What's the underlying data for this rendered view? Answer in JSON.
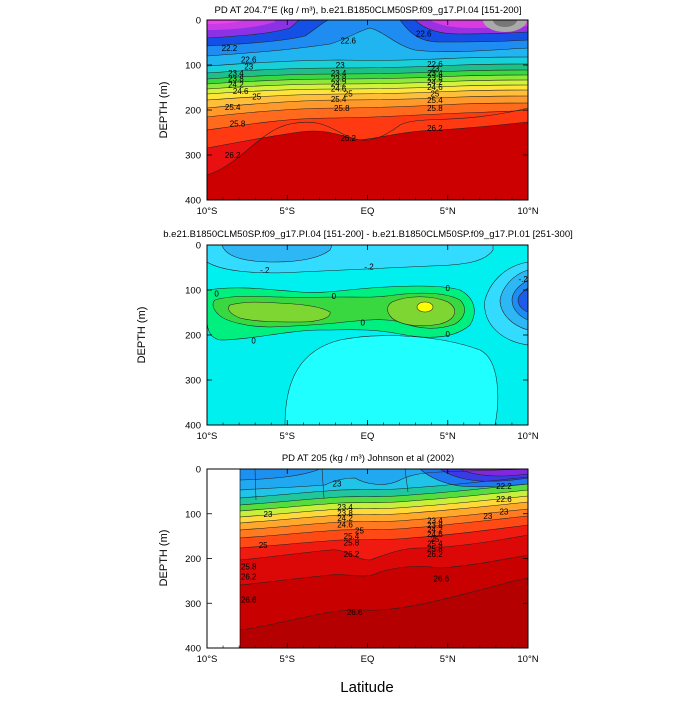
{
  "figure": {
    "xlabel": "Latitude"
  },
  "chart_data": [
    {
      "type": "heatmap",
      "title": "PD AT 204.7°E (kg / m³), b.e21.B1850CLM50SP.f09_g17.PI.04 [151-200]",
      "ylabel": "DEPTH (m)",
      "xlim": [
        -10,
        10
      ],
      "ylim": [
        400,
        0
      ],
      "x_ticks": [
        "10°S",
        "5°S",
        "EQ",
        "5°N",
        "10°N"
      ],
      "y_ticks": [
        0,
        100,
        200,
        300,
        400
      ],
      "contour_labels": [
        {
          "lat": -8.6,
          "depth": 62,
          "text": "22.2"
        },
        {
          "lat": -7.4,
          "depth": 88,
          "text": "22.6"
        },
        {
          "lat": -7.4,
          "depth": 103,
          "text": "23"
        },
        {
          "lat": -8.2,
          "depth": 118,
          "text": "23.4"
        },
        {
          "lat": -8.2,
          "depth": 130,
          "text": "23.8"
        },
        {
          "lat": -8.2,
          "depth": 143,
          "text": "24.2"
        },
        {
          "lat": -7.9,
          "depth": 158,
          "text": "24.6"
        },
        {
          "lat": -6.9,
          "depth": 170,
          "text": "25"
        },
        {
          "lat": -8.4,
          "depth": 193,
          "text": "25.4"
        },
        {
          "lat": -8.1,
          "depth": 230,
          "text": "25.8"
        },
        {
          "lat": -8.4,
          "depth": 300,
          "text": "26.2"
        },
        {
          "lat": -1.2,
          "depth": 45,
          "text": "22.6"
        },
        {
          "lat": -1.7,
          "depth": 100,
          "text": "23"
        },
        {
          "lat": -1.8,
          "depth": 118,
          "text": "23.4"
        },
        {
          "lat": -1.8,
          "depth": 130,
          "text": "23.8"
        },
        {
          "lat": -1.8,
          "depth": 141,
          "text": "24.2"
        },
        {
          "lat": -1.8,
          "depth": 152,
          "text": "24.6"
        },
        {
          "lat": -1.2,
          "depth": 163,
          "text": "25"
        },
        {
          "lat": -1.8,
          "depth": 176,
          "text": "25.4"
        },
        {
          "lat": -1.6,
          "depth": 196,
          "text": "25.8"
        },
        {
          "lat": -1.2,
          "depth": 262,
          "text": "26.2"
        },
        {
          "lat": 3.5,
          "depth": 30,
          "text": "22.6"
        },
        {
          "lat": 4.2,
          "depth": 98,
          "text": "22.6"
        },
        {
          "lat": 4.2,
          "depth": 108,
          "text": "23"
        },
        {
          "lat": 4.2,
          "depth": 118,
          "text": "23.4"
        },
        {
          "lat": 4.2,
          "depth": 128,
          "text": "23.8"
        },
        {
          "lat": 4.2,
          "depth": 138,
          "text": "24.2"
        },
        {
          "lat": 4.2,
          "depth": 149,
          "text": "24.6"
        },
        {
          "lat": 4.2,
          "depth": 163,
          "text": "25"
        },
        {
          "lat": 4.2,
          "depth": 178,
          "text": "25.4"
        },
        {
          "lat": 4.2,
          "depth": 196,
          "text": "25.8"
        },
        {
          "lat": 4.2,
          "depth": 240,
          "text": "26.2"
        }
      ]
    },
    {
      "type": "heatmap",
      "title": "b.e21.B1850CLM50SP.f09_g17.PI.04 [151-200] - b.e21.B1850CLM50SP.f09_g17.PI.01 [251-300]",
      "ylabel": "DEPTH (m)",
      "xlim": [
        -10,
        10
      ],
      "ylim": [
        400,
        0
      ],
      "x_ticks": [
        "10°S",
        "5°S",
        "EQ",
        "5°N",
        "10°N"
      ],
      "y_ticks": [
        0,
        100,
        200,
        300,
        400
      ],
      "contour_labels": [
        {
          "lat": -6.4,
          "depth": 55,
          "text": "-.2"
        },
        {
          "lat": 0.1,
          "depth": 48,
          "text": "-.2"
        },
        {
          "lat": 9.7,
          "depth": 75,
          "text": "-.2"
        },
        {
          "lat": -9.4,
          "depth": 108,
          "text": "0"
        },
        {
          "lat": -2.1,
          "depth": 113,
          "text": "0"
        },
        {
          "lat": 5.0,
          "depth": 95,
          "text": "0"
        },
        {
          "lat": -0.3,
          "depth": 172,
          "text": "0"
        },
        {
          "lat": 5.0,
          "depth": 198,
          "text": "0"
        },
        {
          "lat": -7.1,
          "depth": 212,
          "text": "0"
        }
      ]
    },
    {
      "type": "heatmap",
      "title": "PD AT 205 (kg / m³) Johnson et al (2002)",
      "ylabel": "DEPTH (m)",
      "xlim": [
        -10,
        10
      ],
      "ylim": [
        400,
        0
      ],
      "x_ticks": [
        "10°S",
        "5°S",
        "EQ",
        "5°N",
        "10°N"
      ],
      "y_ticks": [
        0,
        100,
        200,
        300,
        400
      ],
      "contour_labels": [
        {
          "lat": -1.9,
          "depth": 32,
          "text": "23"
        },
        {
          "lat": -6.2,
          "depth": 100,
          "text": "23"
        },
        {
          "lat": -1.4,
          "depth": 85,
          "text": "23.4"
        },
        {
          "lat": -1.4,
          "depth": 98,
          "text": "23.8"
        },
        {
          "lat": -1.4,
          "depth": 110,
          "text": "24.2"
        },
        {
          "lat": -1.4,
          "depth": 124,
          "text": "24.6"
        },
        {
          "lat": -0.5,
          "depth": 137,
          "text": "25"
        },
        {
          "lat": -1.0,
          "depth": 150,
          "text": "25.4"
        },
        {
          "lat": -1.0,
          "depth": 164,
          "text": "25.8"
        },
        {
          "lat": -1.0,
          "depth": 190,
          "text": "26.2"
        },
        {
          "lat": -6.5,
          "depth": 170,
          "text": "25"
        },
        {
          "lat": -7.4,
          "depth": 218,
          "text": "25.8"
        },
        {
          "lat": -7.4,
          "depth": 240,
          "text": "26.2"
        },
        {
          "lat": -7.4,
          "depth": 292,
          "text": "26.6"
        },
        {
          "lat": -0.8,
          "depth": 320,
          "text": "26.6"
        },
        {
          "lat": 4.6,
          "depth": 245,
          "text": "26.6"
        },
        {
          "lat": 8.5,
          "depth": 38,
          "text": "22.2"
        },
        {
          "lat": 8.5,
          "depth": 67,
          "text": "22.6"
        },
        {
          "lat": 8.5,
          "depth": 95,
          "text": "23"
        },
        {
          "lat": 7.5,
          "depth": 105,
          "text": "23"
        },
        {
          "lat": 4.2,
          "depth": 115,
          "text": "23.4"
        },
        {
          "lat": 4.2,
          "depth": 125,
          "text": "23.8"
        },
        {
          "lat": 4.2,
          "depth": 135,
          "text": "24.2"
        },
        {
          "lat": 4.2,
          "depth": 145,
          "text": "24.6"
        },
        {
          "lat": 4.2,
          "depth": 156,
          "text": "25"
        },
        {
          "lat": 4.2,
          "depth": 167,
          "text": "25.4"
        },
        {
          "lat": 4.2,
          "depth": 178,
          "text": "25.8"
        },
        {
          "lat": 4.2,
          "depth": 190,
          "text": "26.2"
        }
      ]
    }
  ]
}
